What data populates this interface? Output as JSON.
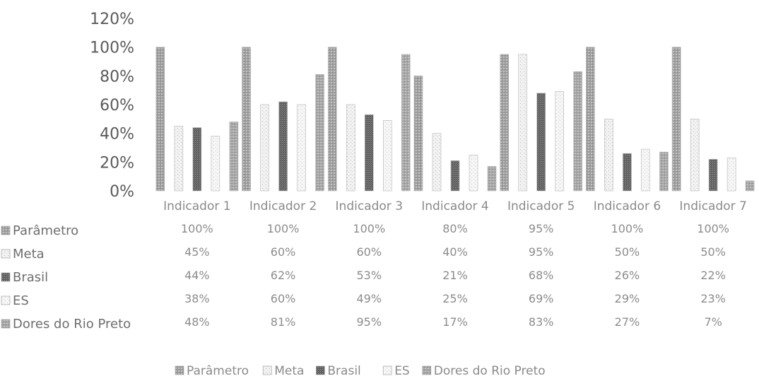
{
  "chart_data": {
    "type": "bar",
    "title": "",
    "xlabel": "",
    "ylabel": "",
    "ylim": [
      0,
      1.2
    ],
    "y_ticks": [
      "0%",
      "20%",
      "40%",
      "60%",
      "80%",
      "100%",
      "120%"
    ],
    "categories": [
      "Indicador 1",
      "Indicador 2",
      "Indicador 3",
      "Indicador 4",
      "Indicador 5",
      "Indicador 6",
      "Indicador 7"
    ],
    "series": [
      {
        "name": "Parâmetro",
        "values": [
          1.0,
          1.0,
          1.0,
          0.8,
          0.95,
          1.0,
          1.0
        ],
        "labels": [
          "100%",
          "100%",
          "100%",
          "80%",
          "95%",
          "100%",
          "100%"
        ],
        "color": "#9e9e9e"
      },
      {
        "name": "Meta",
        "values": [
          0.45,
          0.6,
          0.6,
          0.4,
          0.95,
          0.5,
          0.5
        ],
        "labels": [
          "45%",
          "60%",
          "60%",
          "40%",
          "95%",
          "50%",
          "50%"
        ],
        "color": "#dcdcdc"
      },
      {
        "name": "Brasil",
        "values": [
          0.44,
          0.62,
          0.53,
          0.21,
          0.68,
          0.26,
          0.22
        ],
        "labels": [
          "44%",
          "62%",
          "53%",
          "21%",
          "68%",
          "26%",
          "22%"
        ],
        "color": "#6f6f6f"
      },
      {
        "name": "ES",
        "values": [
          0.38,
          0.6,
          0.49,
          0.25,
          0.69,
          0.29,
          0.23
        ],
        "labels": [
          "38%",
          "60%",
          "49%",
          "25%",
          "69%",
          "29%",
          "23%"
        ],
        "color": "#e8e8e8"
      },
      {
        "name": "Dores do Rio Preto",
        "values": [
          0.48,
          0.81,
          0.95,
          0.17,
          0.83,
          0.27,
          0.07
        ],
        "labels": [
          "48%",
          "81%",
          "95%",
          "17%",
          "83%",
          "27%",
          "7%"
        ],
        "color": "#a8a8a8"
      }
    ],
    "legend_position": "bottom",
    "data_table": true,
    "grid": false
  }
}
